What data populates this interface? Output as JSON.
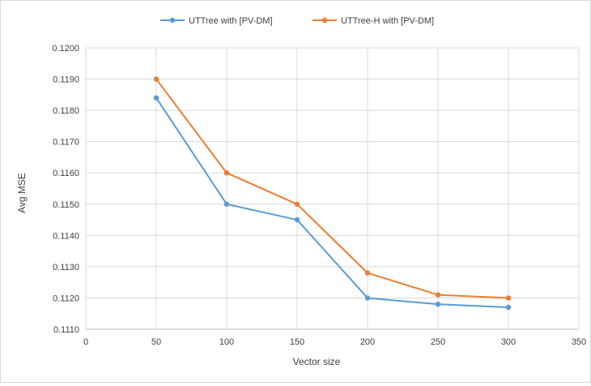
{
  "chart_data": {
    "type": "line",
    "title": "",
    "xlabel": "Vector size",
    "ylabel": "Avg MSE",
    "xlim": [
      0,
      350
    ],
    "ylim": [
      0.111,
      0.12
    ],
    "x_ticks": [
      0,
      50,
      100,
      150,
      200,
      250,
      300,
      350
    ],
    "y_ticks": [
      0.111,
      0.112,
      0.113,
      0.114,
      0.115,
      0.116,
      0.117,
      0.118,
      0.119,
      0.12
    ],
    "y_tick_labels": [
      "0.1110",
      "0.1120",
      "0.1130",
      "0.1140",
      "0.1150",
      "0.1160",
      "0.1170",
      "0.1180",
      "0.1190",
      "0.1200"
    ],
    "grid": true,
    "legend_position": "top",
    "x": [
      50,
      100,
      150,
      200,
      250,
      300
    ],
    "series": [
      {
        "name": "UTTree with [PV-DM]",
        "color": "#5b9bd5",
        "values": [
          0.1184,
          0.115,
          0.1145,
          0.112,
          0.1118,
          0.1117
        ]
      },
      {
        "name": "UTTree-H with [PV-DM]",
        "color": "#ed7d31",
        "values": [
          0.119,
          0.116,
          0.115,
          0.1128,
          0.1121,
          0.112
        ]
      }
    ]
  }
}
